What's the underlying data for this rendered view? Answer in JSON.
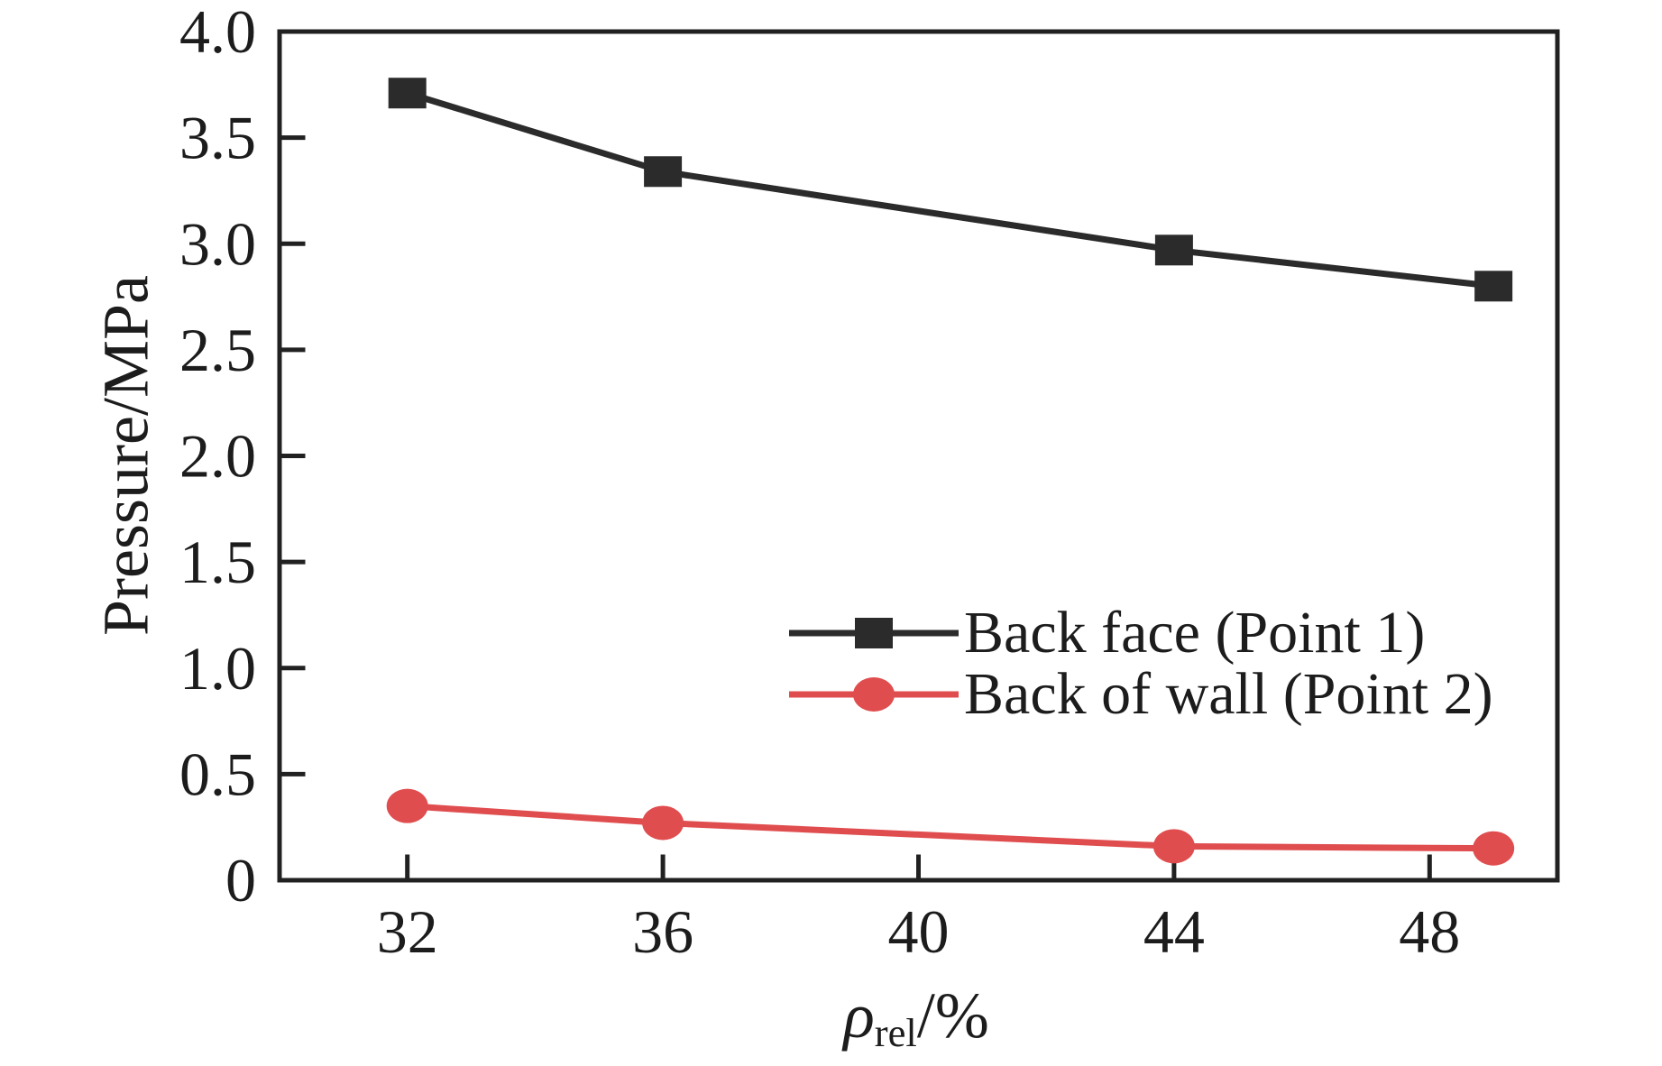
{
  "figure": {
    "background": "#ffffff",
    "axis_color": "#212121",
    "text_color": "#1c1c1c"
  },
  "chart_data": {
    "type": "line",
    "title": "",
    "xlabel": "ρrel/%",
    "xlabel_rho": "ρ",
    "xlabel_sub": "rel",
    "xlabel_suffix": "/%",
    "ylabel": "Pressure/MPa",
    "xlim": [
      30,
      50
    ],
    "ylim": [
      0,
      4
    ],
    "grid": false,
    "x_ticks": [
      32,
      36,
      40,
      44,
      48
    ],
    "x_tick_labels": [
      "32",
      "36",
      "40",
      "44",
      "48"
    ],
    "y_ticks": [
      0,
      0.5,
      1.0,
      1.5,
      2.0,
      2.5,
      3.0,
      3.5,
      4.0
    ],
    "y_tick_labels": [
      "0",
      "0.5",
      "1.0",
      "1.5",
      "2.0",
      "2.5",
      "3.0",
      "3.5",
      "4.0"
    ],
    "legend_position": "inside lower-right of plot",
    "x": [
      32,
      36,
      44,
      49
    ],
    "series": [
      {
        "name": "Back face (Point 1)",
        "color": "#2b2b2b",
        "marker": "square",
        "values": [
          3.71,
          3.34,
          2.97,
          2.8
        ]
      },
      {
        "name": "Back of wall (Point 2)",
        "color": "#e04d4f",
        "marker": "circle",
        "values": [
          0.35,
          0.27,
          0.16,
          0.15
        ]
      }
    ]
  }
}
